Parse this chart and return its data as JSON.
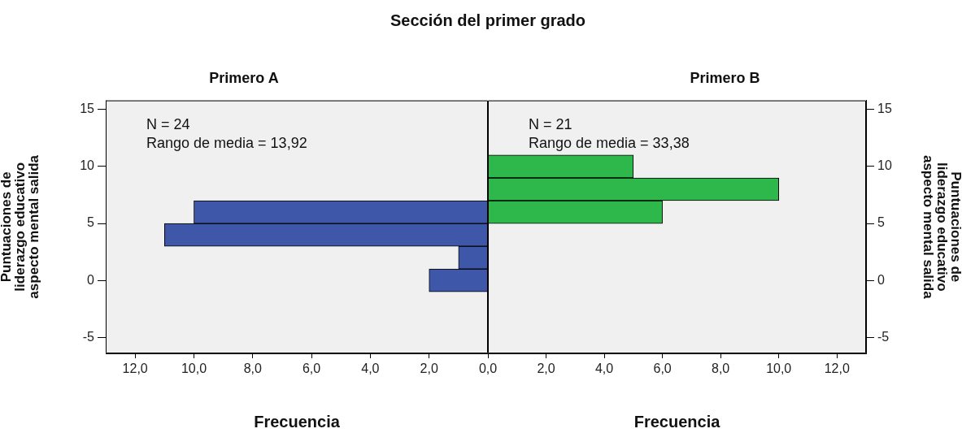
{
  "chart_data": [
    {
      "type": "histogram",
      "title": "Sección del primer grado",
      "subtitle": "Primero A",
      "orientation": "horizontal",
      "xlabel": "Frecuencia",
      "ylabel": "Puntuaciones de liderazgo educativo aspecto mental salida",
      "bins": [
        -1,
        1,
        3,
        5,
        7
      ],
      "values": [
        2,
        1,
        11,
        10
      ],
      "color": "#3f57a9",
      "xlim": [
        13,
        0
      ],
      "xticks": [
        {
          "value": 12,
          "label": "12,0"
        },
        {
          "value": 10,
          "label": "10,0"
        },
        {
          "value": 8,
          "label": "8,0"
        },
        {
          "value": 6,
          "label": "6,0"
        },
        {
          "value": 4,
          "label": "4,0"
        },
        {
          "value": 2,
          "label": "2,0"
        },
        {
          "value": 0,
          "label": "0,0"
        }
      ],
      "ylim": [
        -6.4,
        15.8
      ],
      "yticks": [
        -5,
        0,
        5,
        10,
        15
      ],
      "annotations": [
        "N = 24",
        "Rango de media = 13,92"
      ],
      "grid": false,
      "legend": false
    },
    {
      "type": "histogram",
      "subtitle": "Primero B",
      "orientation": "horizontal",
      "xlabel": "Frecuencia",
      "ylabel": "Puntuaciones de liderazgo educativo aspecto mental salida",
      "bins": [
        5,
        7,
        9,
        11
      ],
      "values": [
        6,
        10,
        5
      ],
      "color": "#2eb84b",
      "xlim": [
        0,
        13
      ],
      "xticks": [
        {
          "value": 0,
          "label": null
        },
        {
          "value": 2,
          "label": "2,0"
        },
        {
          "value": 4,
          "label": "4,0"
        },
        {
          "value": 6,
          "label": "6,0"
        },
        {
          "value": 8,
          "label": "8,0"
        },
        {
          "value": 10,
          "label": "10,0"
        },
        {
          "value": 12,
          "label": "12,0"
        }
      ],
      "ylim": [
        -6.4,
        15.8
      ],
      "yticks": [
        -5,
        0,
        5,
        10,
        15
      ],
      "annotations": [
        "N = 21",
        "Rango de media = 33,38"
      ],
      "grid": false,
      "legend": false
    }
  ]
}
